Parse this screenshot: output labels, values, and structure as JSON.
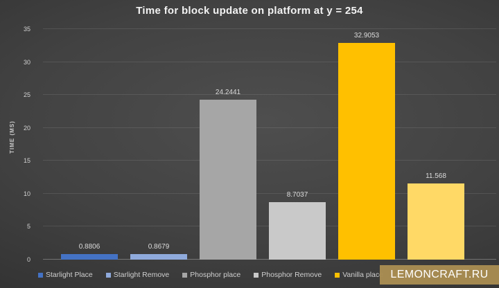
{
  "page": {
    "title": "Time for block update on platform at y = 254",
    "watermark_text": "LEMONCRAFT.RU"
  },
  "chart_data": {
    "type": "bar",
    "title": "Time for block update on platform at y = 254",
    "xlabel": "",
    "ylabel": "TIME (MS)",
    "ylim": [
      0,
      35
    ],
    "yticks": [
      0,
      5,
      10,
      15,
      20,
      25,
      30,
      35
    ],
    "grid": true,
    "legend_position": "bottom",
    "colors": {
      "background_center": "#4e4e4e",
      "background_edge": "#262626",
      "watermark_bg": "#a88c52",
      "text": "#d2d2d2"
    },
    "series": [
      {
        "name": "Starlight Place",
        "value": 0.8806,
        "data_label": "0.8806",
        "color": "#4472C4",
        "legend_visible": true
      },
      {
        "name": "Starlight Remove",
        "value": 0.8679,
        "data_label": "0.8679",
        "color": "#8FAADC",
        "legend_visible": true
      },
      {
        "name": "Phosphor place",
        "value": 24.2441,
        "data_label": "24.2441",
        "color": "#A6A6A6",
        "legend_visible": true
      },
      {
        "name": "Phosphor Remove",
        "value": 8.7037,
        "data_label": "8.7037",
        "color": "#C9C9C9",
        "legend_visible": true
      },
      {
        "name": "Vanilla place",
        "value": 32.9053,
        "data_label": "32.9053",
        "color": "#FFC000",
        "legend_visible": true
      },
      {
        "name": "",
        "value": 11.568,
        "data_label": "11.568",
        "color": "#FFD966",
        "legend_visible": false
      }
    ]
  }
}
